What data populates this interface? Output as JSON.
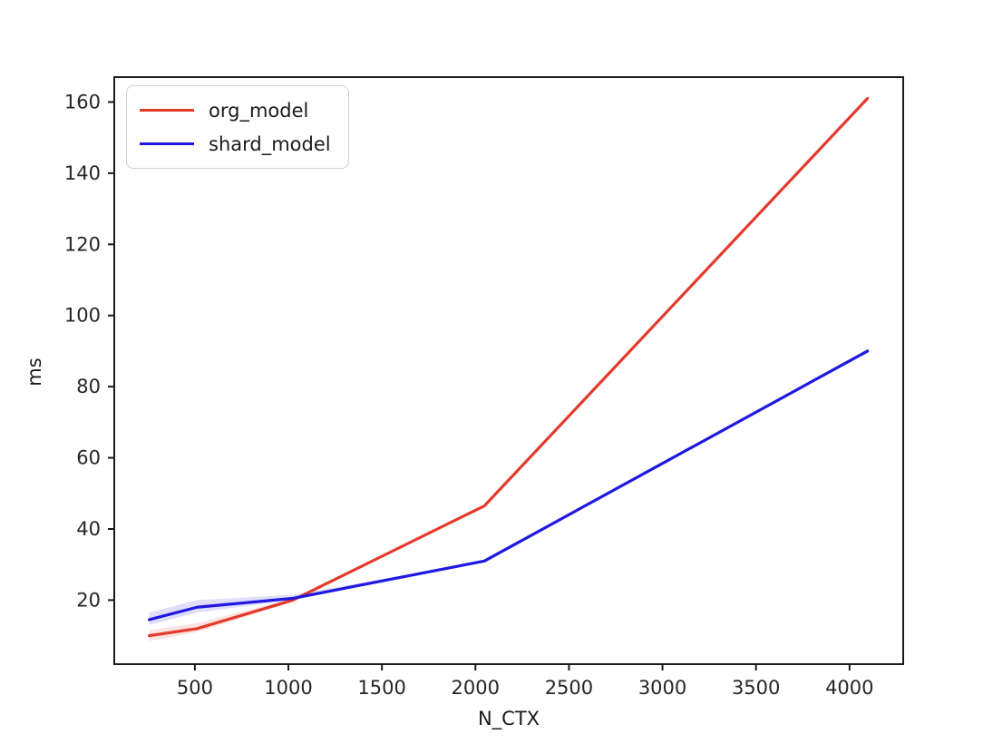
{
  "page": {
    "background": "#ffffff"
  },
  "chart_data": {
    "type": "line",
    "title": "",
    "xlabel": "N_CTX",
    "ylabel": "ms",
    "x": [
      256,
      512,
      1024,
      2048,
      4096
    ],
    "series": [
      {
        "name": "org_model",
        "color": "#e43a2e",
        "values": [
          10,
          12,
          20,
          46.5,
          161
        ],
        "band_low": [
          8.5,
          11,
          19.5,
          46.5,
          161
        ],
        "band_high": [
          11.5,
          13.5,
          20.5,
          46.5,
          161
        ]
      },
      {
        "name": "shard_model",
        "color": "#1f18e0",
        "values": [
          14.5,
          18,
          20.5,
          31,
          90
        ],
        "band_low": [
          13,
          16.5,
          20,
          31,
          90
        ],
        "band_high": [
          16.5,
          20,
          21.5,
          31,
          90
        ]
      }
    ],
    "band_opacity": 0.14,
    "xlim": [
      69,
      4287
    ],
    "ylim": [
      2,
      167
    ],
    "xticks": [
      500,
      1000,
      1500,
      2000,
      2500,
      3000,
      3500,
      4000
    ],
    "yticks": [
      20,
      40,
      60,
      80,
      100,
      120,
      140,
      160
    ],
    "grid": false,
    "legend": {
      "position": "upper left",
      "entries": [
        "org_model",
        "shard_model"
      ]
    },
    "axis_color": "#1a1a1a",
    "tick_label_color": "#262626"
  }
}
